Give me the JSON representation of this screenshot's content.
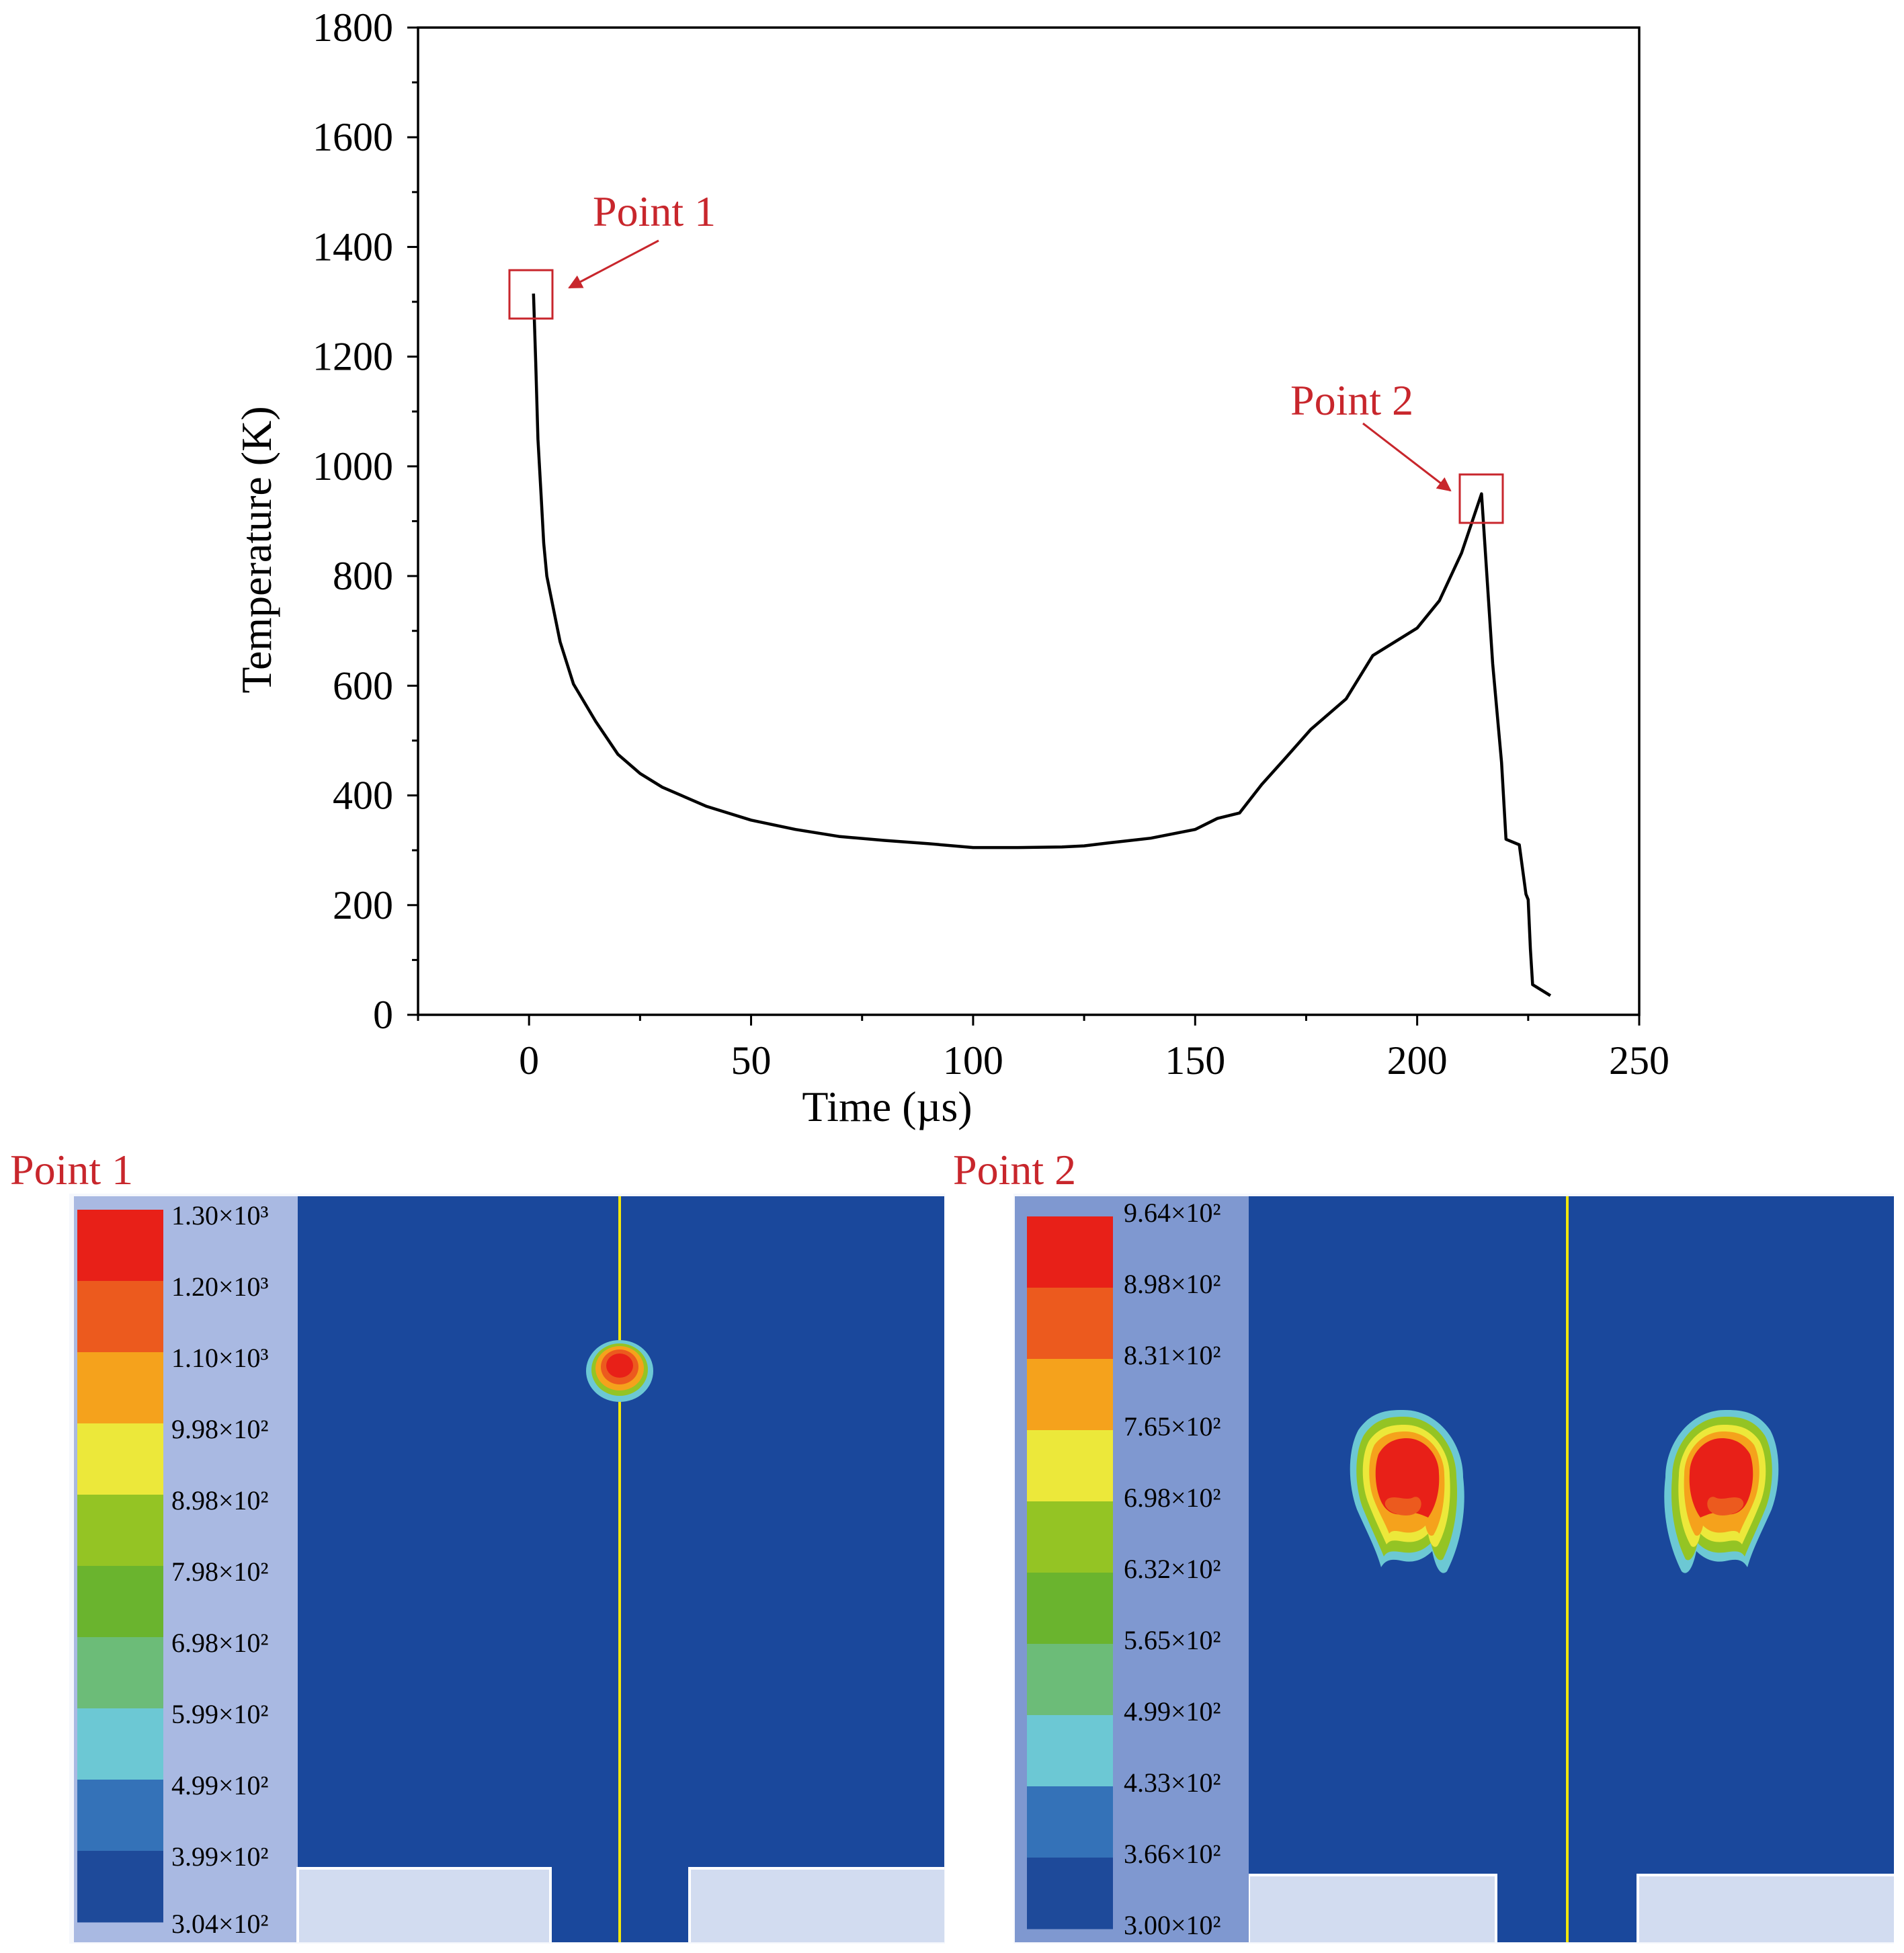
{
  "chart_data": {
    "type": "line",
    "title": "",
    "xlabel": "Time (µs)",
    "ylabel": "Temperature (K)",
    "xlim": [
      -25,
      250
    ],
    "ylim": [
      0,
      1800
    ],
    "xticks": [
      0,
      50,
      100,
      150,
      200,
      250
    ],
    "yticks": [
      0,
      200,
      400,
      600,
      800,
      1000,
      1200,
      1400,
      1600,
      1800
    ],
    "grid": false,
    "series": [
      {
        "name": "Temperature",
        "color": "#000000",
        "x": [
          1,
          1.5,
          2,
          2.7,
          3.3,
          4,
          5,
          7,
          10,
          15,
          20,
          25,
          30,
          40,
          50,
          60,
          70,
          80,
          90,
          100,
          110,
          120,
          125,
          130,
          140,
          145,
          150,
          155,
          160,
          165,
          170,
          176,
          184,
          190,
          200,
          205,
          210,
          214.5,
          217,
          219,
          220,
          223,
          224.5,
          225,
          225.5,
          226,
          227,
          230
        ],
        "y": [
          1315,
          1190,
          1050,
          950,
          860,
          800,
          760,
          680,
          603,
          535,
          475,
          440,
          415,
          380,
          355,
          338,
          325,
          318,
          312,
          305,
          305,
          306,
          308,
          313,
          322,
          330,
          338,
          358,
          368,
          420,
          465,
          520,
          576,
          655,
          705,
          755,
          842,
          950,
          640,
          460,
          320,
          310,
          220,
          210,
          120,
          55,
          50,
          35
        ]
      }
    ],
    "annotations": [
      {
        "label": "Point 1",
        "color": "#c8262c",
        "x": 0,
        "y": 1315
      },
      {
        "label": "Point 2",
        "color": "#c8262c",
        "x": 214.5,
        "y": 950
      }
    ]
  },
  "panels": [
    {
      "label": "Point 1",
      "legend": [
        "1.30×10³",
        "1.20×10³",
        "1.10×10³",
        "9.98×10²",
        "8.98×10²",
        "7.98×10²",
        "6.98×10²",
        "5.99×10²",
        "4.99×10²",
        "3.99×10²",
        "3.04×10²"
      ]
    },
    {
      "label": "Point 2",
      "legend": [
        "9.64×10²",
        "8.98×10²",
        "8.31×10²",
        "7.65×10²",
        "6.98×10²",
        "6.32×10²",
        "5.65×10²",
        "4.99×10²",
        "4.33×10²",
        "3.66×10²",
        "3.00×10²"
      ]
    }
  ],
  "contour_colors": [
    "#e82018",
    "#ec5a1e",
    "#f5a21c",
    "#ece83a",
    "#94c424",
    "#6ab42e",
    "#6cbc78",
    "#6cc8d4",
    "#3472b8",
    "#1e4a9a"
  ],
  "field_color": "#1a489c",
  "axis_color": "#000000"
}
